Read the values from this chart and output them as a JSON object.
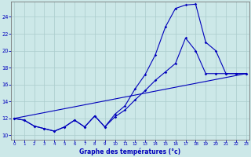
{
  "title": "Graphe des températures (°c)",
  "bg_color": "#cce8e8",
  "line_color": "#0000bb",
  "xlim_min": -0.3,
  "xlim_max": 23.3,
  "ylim_min": 9.5,
  "ylim_max": 25.8,
  "xticks": [
    0,
    1,
    2,
    3,
    4,
    5,
    6,
    7,
    8,
    9,
    10,
    11,
    12,
    13,
    14,
    15,
    16,
    17,
    18,
    19,
    20,
    21,
    22,
    23
  ],
  "yticks": [
    10,
    12,
    14,
    16,
    18,
    20,
    22,
    24
  ],
  "curve_main_x": [
    0,
    1,
    2,
    3,
    4,
    5,
    6,
    7,
    8,
    9,
    10,
    11,
    12,
    13,
    14,
    15,
    16,
    17,
    18,
    19,
    20,
    21,
    22,
    23
  ],
  "curve_main_y": [
    12.0,
    11.8,
    11.1,
    10.8,
    10.5,
    11.0,
    11.8,
    11.0,
    12.3,
    11.0,
    12.5,
    13.5,
    15.5,
    17.2,
    19.5,
    22.8,
    25.0,
    25.4,
    25.5,
    21.0,
    20.0,
    17.3,
    17.3,
    17.3
  ],
  "curve_mid_x": [
    0,
    1,
    2,
    3,
    4,
    5,
    6,
    7,
    8,
    9,
    10,
    11,
    12,
    13,
    14,
    15,
    16,
    17,
    18,
    19,
    20,
    21,
    22,
    23
  ],
  "curve_mid_y": [
    12.0,
    11.8,
    11.1,
    10.8,
    10.5,
    11.0,
    11.8,
    11.0,
    12.3,
    11.0,
    12.2,
    13.0,
    14.2,
    15.3,
    16.5,
    17.5,
    18.5,
    21.5,
    20.0,
    17.3,
    17.3,
    17.3,
    17.3,
    17.3
  ],
  "line_x": [
    0,
    23
  ],
  "line_y": [
    12.0,
    17.3
  ]
}
